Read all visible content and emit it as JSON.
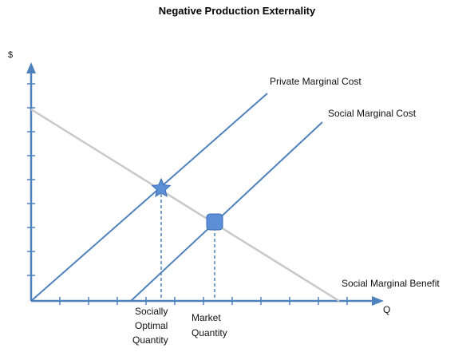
{
  "title": "Negative Production Externality",
  "axes": {
    "y_label": "$",
    "x_label": "Q"
  },
  "curves": {
    "private_mc": "Private Marginal Cost",
    "social_mc": "Social Marginal Cost",
    "social_mb": "Social Marginal Benefit"
  },
  "quantities": {
    "socially_optimal": [
      "Socially",
      "Optimal",
      "Quantity"
    ],
    "market": [
      "Market",
      "Quantity"
    ]
  },
  "colors": {
    "axis": "#4f81bd",
    "curve": "#4f81bd",
    "benefit": "#c8c8c8",
    "marker": "#5b8fd6"
  },
  "markers": {
    "socially_optimal_point": "star-icon",
    "market_point": "rounded-square-icon"
  }
}
